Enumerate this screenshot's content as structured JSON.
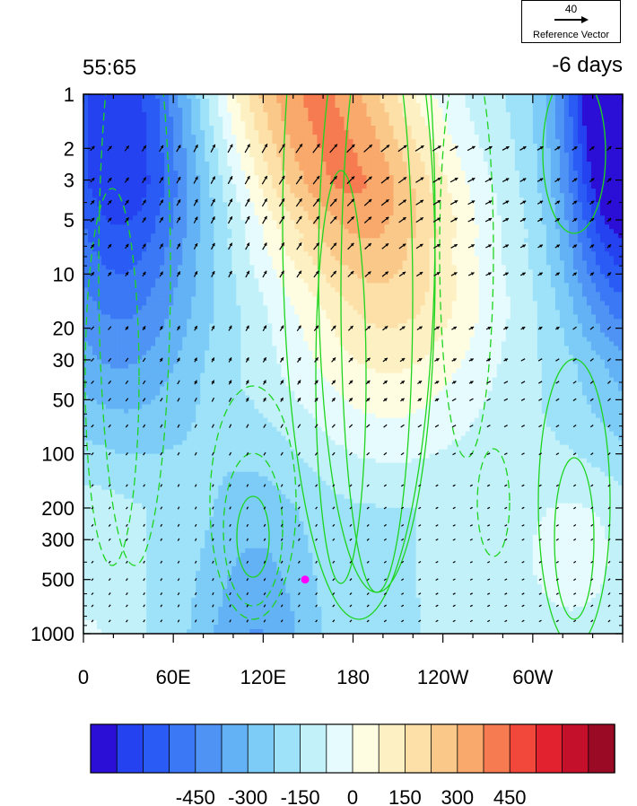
{
  "header": {
    "left_label": "55:65",
    "right_label": "-6 days"
  },
  "reference_vector": {
    "magnitude": "40",
    "label": "Reference Vector"
  },
  "chart_data": {
    "type": "heatmap",
    "title": "",
    "xlabel": "",
    "ylabel": "",
    "x_ticks": [
      "0",
      "60E",
      "120E",
      "180",
      "120W",
      "60W"
    ],
    "x_tick_values": [
      0,
      60,
      120,
      180,
      240,
      300
    ],
    "xlim": [
      0,
      360
    ],
    "y_ticks": [
      "1",
      "2",
      "3",
      "5",
      "10",
      "20",
      "30",
      "50",
      "100",
      "200",
      "300",
      "500",
      "1000"
    ],
    "y_tick_values": [
      1,
      2,
      3,
      5,
      10,
      20,
      30,
      50,
      100,
      200,
      300,
      500,
      1000
    ],
    "ylim": [
      1000,
      1
    ],
    "y_scale": "log",
    "colorbar": {
      "levels": [
        -525,
        -450,
        -375,
        -300,
        -225,
        -150,
        -75,
        0,
        75,
        150,
        225,
        300,
        375,
        450,
        525
      ],
      "tick_labels": [
        "-450",
        "-300",
        "-150",
        "0",
        "150",
        "300",
        "450"
      ],
      "tick_values": [
        -450,
        -300,
        -150,
        0,
        150,
        300,
        450
      ],
      "colors": [
        "#2b0fd6",
        "#2442f0",
        "#2a5cf5",
        "#3a78f6",
        "#4f93f5",
        "#63b2f6",
        "#7cccf7",
        "#9ee2f9",
        "#c2f1fa",
        "#e6fbfd",
        "#fefde2",
        "#fdf0c3",
        "#fce0a8",
        "#fac98a",
        "#f8a96b",
        "#f67b50",
        "#f2483b",
        "#e3222f",
        "#c4102a",
        "#9a0a25"
      ]
    },
    "contour_line_color": "#1ed41e",
    "vector_color": "#000000",
    "marker": {
      "lon": 148,
      "pressure": 500,
      "color": "#ff00ff"
    }
  }
}
